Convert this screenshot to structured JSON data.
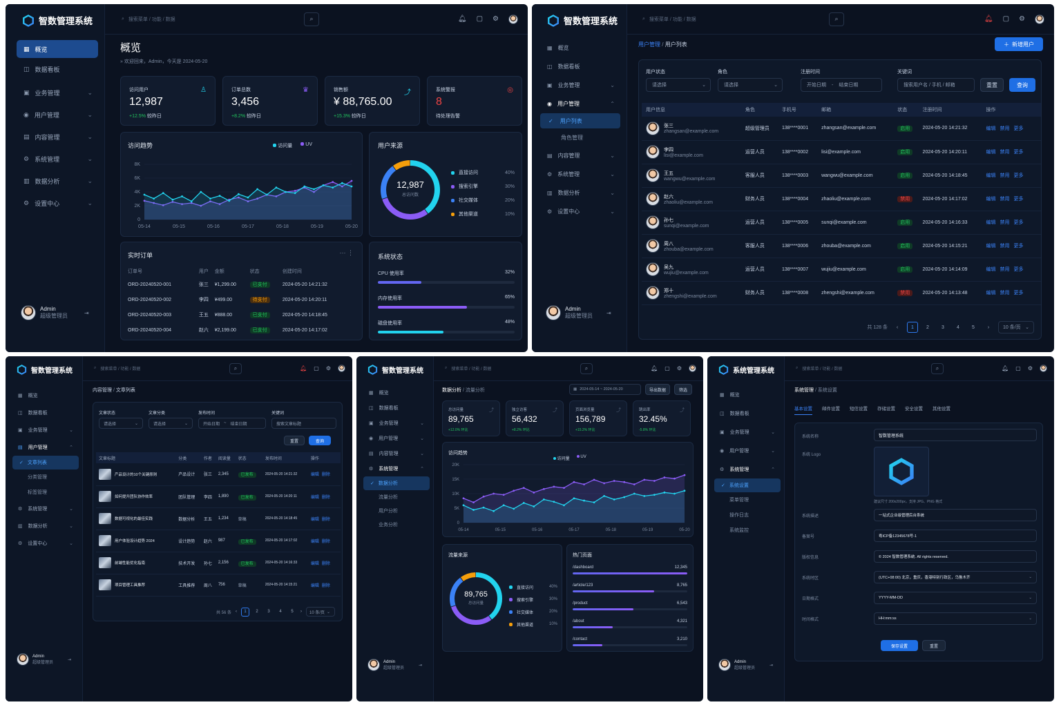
{
  "brand": {
    "name": "智数管理系统",
    "name_alt": "系统管理系统"
  },
  "search_placeholder": "搜索菜单 / 功能 / 数据",
  "user": {
    "name": "Admin",
    "role": "超级管理员"
  },
  "nav": {
    "overview": "概览",
    "dashboard": "数据看板",
    "business": "业务管理",
    "users": "用户管理",
    "content": "内容管理",
    "system": "系统管理",
    "analytics": "数据分析",
    "settings": "设置中心",
    "user_list": "用户列表",
    "role_mgmt": "角色管理",
    "article_list": "文章列表",
    "category_mgmt": "分类管理",
    "tag_mgmt": "标签管理",
    "traffic": "流量分析",
    "user_analysis": "用户分析",
    "biz_analysis": "业务分析",
    "sys_settings": "系统设置",
    "menu_mgmt": "菜单管理",
    "op_log": "操作日志",
    "sys_monitor": "系统监控"
  },
  "colors": {
    "accent": "#1f6fe5",
    "cyan": "#22d3ee",
    "purple": "#8b5cf6",
    "green": "#22c55e",
    "orange": "#f59e0b",
    "red": "#ef4444"
  },
  "p1": {
    "title": "概览",
    "welcome": "欢迎回来，Admin，今天是 2024-05-20",
    "kpis": [
      {
        "label": "访问用户",
        "value": "12,987",
        "delta": "+12.5%",
        "cmp": "较昨日",
        "icon": "user-icon"
      },
      {
        "label": "订单总数",
        "value": "3,456",
        "delta": "+8.2%",
        "cmp": "较昨日",
        "icon": "users-icon"
      },
      {
        "label": "销售额",
        "value": "¥ 88,765.00",
        "delta": "+15.3%",
        "cmp": "较昨日",
        "icon": "trend-icon"
      },
      {
        "label": "系统警报",
        "value": "8",
        "delta": "",
        "cmp": "待处理告警",
        "icon": "alert-icon"
      }
    ],
    "trend": {
      "title": "访问趋势",
      "legend_a": "访问量",
      "legend_b": "UV",
      "yticks": [
        "8K",
        "6K",
        "4K",
        "2K",
        "0"
      ],
      "xticks": [
        "05-14",
        "05-15",
        "05-16",
        "05-17",
        "05-18",
        "05-19",
        "05-20"
      ]
    },
    "source": {
      "title": "用户来源",
      "total": "12,987",
      "total_label": "总访问数",
      "items": [
        {
          "name": "直接访问",
          "pct": "40%",
          "color": "#22d3ee"
        },
        {
          "name": "搜索引擎",
          "pct": "30%",
          "color": "#8b5cf6"
        },
        {
          "name": "社交媒体",
          "pct": "20%",
          "color": "#3b82f6"
        },
        {
          "name": "其他渠道",
          "pct": "10%",
          "color": "#f59e0b"
        }
      ]
    },
    "orders": {
      "title": "实时订单",
      "more": "···",
      "cols": [
        "订单号",
        "用户",
        "金额",
        "状态",
        "创建时间"
      ],
      "rows": [
        {
          "id": "ORD-20240520-001",
          "user": "张三",
          "amount": "¥1,299.00",
          "status": "已支付",
          "st": "ok",
          "time": "2024-05-20 14:21:32"
        },
        {
          "id": "ORD-20240520-002",
          "user": "李四",
          "amount": "¥499.00",
          "status": "待支付",
          "st": "wait",
          "time": "2024-05-20 14:20:11"
        },
        {
          "id": "ORD-20240520-003",
          "user": "王五",
          "amount": "¥888.00",
          "status": "已支付",
          "st": "ok",
          "time": "2024-05-20 14:18:45"
        },
        {
          "id": "ORD-20240520-004",
          "user": "赵六",
          "amount": "¥2,199.00",
          "status": "已支付",
          "st": "ok",
          "time": "2024-05-20 14:17:02"
        }
      ]
    },
    "sys": {
      "title": "系统状态",
      "items": [
        {
          "name": "CPU 使用率",
          "pct": "32%",
          "v": 0.32,
          "color": "#6366f1"
        },
        {
          "name": "内存使用率",
          "pct": "65%",
          "v": 0.65,
          "color": "#8b5cf6"
        },
        {
          "name": "磁盘使用率",
          "pct": "48%",
          "v": 0.48,
          "color": "#22d3ee"
        }
      ]
    }
  },
  "p2": {
    "crumb_a": "用户管理",
    "crumb_b": "用户列表",
    "new_btn": "新增用户",
    "filters": {
      "status_label": "用户状态",
      "status_ph": "请选择",
      "role_label": "角色",
      "role_ph": "请选择",
      "time_label": "注册时间",
      "start": "开始日期",
      "sep": "-",
      "end": "结束日期",
      "kw_label": "关键词",
      "kw_ph": "搜索用户名 / 手机 / 邮箱",
      "reset": "重置",
      "query": "查询"
    },
    "cols": [
      "用户信息",
      "角色",
      "手机号",
      "邮箱",
      "状态",
      "注册时间",
      "操作"
    ],
    "rows": [
      {
        "name": "张三",
        "mail": "zhangsan@example.com",
        "role": "超级管理员",
        "phone": "138****0001",
        "status": "启用",
        "st": "ok",
        "time": "2024-05-20 14:21:32"
      },
      {
        "name": "李四",
        "mail": "lisi@example.com",
        "role": "运营人员",
        "phone": "138****0002",
        "status": "启用",
        "st": "ok",
        "time": "2024-05-20 14:20:11"
      },
      {
        "name": "王五",
        "mail": "wangwu@example.com",
        "role": "客服人员",
        "phone": "138****0003",
        "status": "启用",
        "st": "ok",
        "time": "2024-05-20 14:18:45"
      },
      {
        "name": "赵六",
        "mail": "zhaoliu@example.com",
        "role": "财务人员",
        "phone": "138****0004",
        "status": "禁用",
        "st": "no",
        "time": "2024-05-20 14:17:02"
      },
      {
        "name": "孙七",
        "mail": "sunqi@example.com",
        "role": "运营人员",
        "phone": "138****0005",
        "status": "启用",
        "st": "ok",
        "time": "2024-05-20 14:16:33"
      },
      {
        "name": "周八",
        "mail": "zhouba@example.com",
        "role": "客服人员",
        "phone": "138****0006",
        "status": "启用",
        "st": "ok",
        "time": "2024-05-20 14:15:21"
      },
      {
        "name": "吴九",
        "mail": "wujiu@example.com",
        "role": "运营人员",
        "phone": "138****0007",
        "status": "启用",
        "st": "ok",
        "time": "2024-05-20 14:14:09"
      },
      {
        "name": "郑十",
        "mail": "zhengshi@example.com",
        "role": "财务人员",
        "phone": "138****0008",
        "status": "禁用",
        "st": "no",
        "time": "2024-05-20 14:13:48"
      }
    ],
    "ops": [
      "编辑",
      "禁用",
      "更多"
    ],
    "total": "共 128 条",
    "pages": [
      "1",
      "2",
      "3",
      "4",
      "5"
    ],
    "page_size": "10 条/页"
  },
  "p3": {
    "crumb_a": "内容管理",
    "crumb_b": "文章列表",
    "filters": {
      "status_label": "文章状态",
      "status_ph": "请选择",
      "cat_label": "文章分类",
      "cat_ph": "请选择",
      "time_label": "发布时间",
      "start": "开始日期",
      "sep": "~",
      "end": "结束日期",
      "kw_label": "关键词",
      "kw_ph": "搜索文章标题",
      "reset": "重置",
      "query": "查询"
    },
    "cols": [
      "文章标题",
      "分类",
      "作者",
      "阅读量",
      "状态",
      "发布时间",
      "操作"
    ],
    "rows": [
      {
        "title": "产品设计的10个关键原则",
        "cat": "产品设计",
        "author": "张三",
        "reads": "2,345",
        "status": "已发布",
        "st": "ok",
        "time": "2024-05-20 14:21:32"
      },
      {
        "title": "如何提升团队协作效率",
        "cat": "团队管理",
        "author": "李四",
        "reads": "1,890",
        "status": "已发布",
        "st": "ok",
        "time": "2024-05-20 14:20:11"
      },
      {
        "title": "数据可视化的最佳实践",
        "cat": "数据分析",
        "author": "王五",
        "reads": "1,234",
        "status": "草稿",
        "st": "draft",
        "time": "2024-05-20 14:18:45"
      },
      {
        "title": "用户体验设计趋势 2024",
        "cat": "设计趋势",
        "author": "赵六",
        "reads": "987",
        "status": "已发布",
        "st": "ok",
        "time": "2024-05-20 14:17:02"
      },
      {
        "title": "前端性能优化指南",
        "cat": "技术开发",
        "author": "孙七",
        "reads": "2,156",
        "status": "已发布",
        "st": "ok",
        "time": "2024-05-20 14:16:33"
      },
      {
        "title": "项目管理工具推荐",
        "cat": "工具推荐",
        "author": "周八",
        "reads": "756",
        "status": "草稿",
        "st": "draft",
        "time": "2024-05-20 14:15:21"
      }
    ],
    "ops": [
      "编辑",
      "删除"
    ],
    "total": "共 56 条",
    "pages": [
      "1",
      "2",
      "3",
      "4",
      "5"
    ],
    "page_size": "10 条/页"
  },
  "p4": {
    "crumb_a": "数据分析",
    "crumb_b": "流量分析",
    "date_range": "2024-05-14 ~ 2024-05-20",
    "export": "导出数据",
    "filter": "筛选",
    "kpis": [
      {
        "label": "总访问量",
        "value": "89,765",
        "delta": "+12.0% 环比"
      },
      {
        "label": "独立访客",
        "value": "56,432",
        "delta": "+8.2% 环比"
      },
      {
        "label": "页面浏览量",
        "value": "156,789",
        "delta": "+15.2% 环比"
      },
      {
        "label": "跳出率",
        "value": "32.45%",
        "delta": "-5.8% 环比"
      }
    ],
    "trend": {
      "title": "访问趋势",
      "legend_a": "访问量",
      "legend_b": "UV",
      "yticks": [
        "20K",
        "15K",
        "10K",
        "5K",
        "0"
      ],
      "xticks": [
        "05-14",
        "05-15",
        "05-16",
        "05-17",
        "05-18",
        "05-19",
        "05-20"
      ]
    },
    "source": {
      "title": "流量来源",
      "total": "89,765",
      "total_label": "总访问量",
      "items": [
        {
          "name": "直接访问",
          "pct": "40%",
          "color": "#22d3ee"
        },
        {
          "name": "搜索引擎",
          "pct": "30%",
          "color": "#8b5cf6"
        },
        {
          "name": "社交媒体",
          "pct": "20%",
          "color": "#3b82f6"
        },
        {
          "name": "其他渠道",
          "pct": "10%",
          "color": "#f59e0b"
        }
      ]
    },
    "pages": {
      "title": "热门页面",
      "items": [
        {
          "path": "/dashboard",
          "count": "12,345",
          "v": 1.0
        },
        {
          "path": "/article/123",
          "count": "8,765",
          "v": 0.71
        },
        {
          "path": "/product",
          "count": "6,543",
          "v": 0.53
        },
        {
          "path": "/about",
          "count": "4,321",
          "v": 0.35
        },
        {
          "path": "/contact",
          "count": "3,210",
          "v": 0.26
        }
      ]
    }
  },
  "p5": {
    "crumb_a": "系统管理",
    "crumb_b": "系统设置",
    "tabs": [
      "基本设置",
      "邮件设置",
      "短信设置",
      "存储设置",
      "安全设置",
      "其他设置"
    ],
    "fields": {
      "name_label": "系统名称",
      "name": "智数管理系统",
      "logo_label": "系统 Logo",
      "logo_hint": "建议尺寸 200x200px，支持 JPG、PNG 格式",
      "desc_label": "系统描述",
      "desc": "一站式企业级管理后台系统",
      "icp_label": "备案号",
      "icp": "粤ICP备12345678号-1",
      "copy_label": "版权信息",
      "copy": "© 2024 智数管理系统. All rights reserved.",
      "tz_label": "系统时区",
      "tz": "(UTC+08:00) 北京，重庆，香港特别行政区，乌鲁木齐",
      "date_label": "日期格式",
      "date": "YYYY-MM-DD",
      "time_label": "时间格式",
      "time": "HH:mm:ss"
    },
    "save": "保存设置",
    "reset": "重置"
  }
}
